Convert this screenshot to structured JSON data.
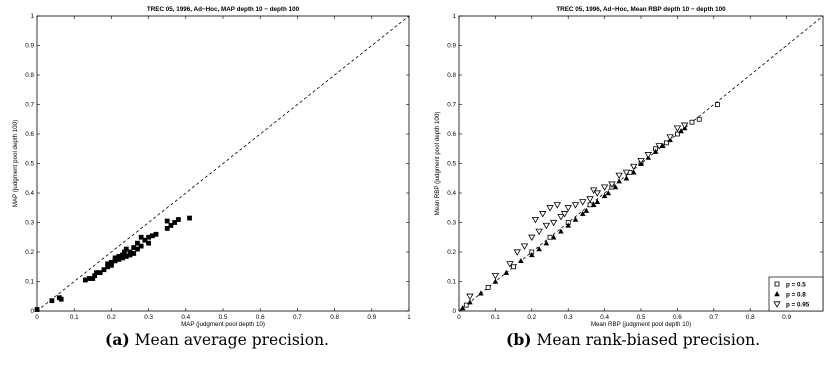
{
  "chart_data": [
    {
      "type": "scatter",
      "title": "TREC 05, 1996, Ad−Hoc, MAP depth 10 − depth 100",
      "xlabel": "MAP (judgment pool depth 10)",
      "ylabel": "MAP (judgment pool depth 100)",
      "xlim": [
        0,
        1
      ],
      "ylim": [
        0,
        1
      ],
      "xticks": [
        "0",
        "0.1",
        "0.2",
        "0.3",
        "0.4",
        "0.5",
        "0.6",
        "0.7",
        "0.8",
        "0.9",
        "1"
      ],
      "yticks": [
        "0",
        "0.1",
        "0.2",
        "0.3",
        "0.4",
        "0.5",
        "0.6",
        "0.7",
        "0.8",
        "0.9",
        "1"
      ],
      "reference_line": "y = x (dashed)",
      "grid": false,
      "series": [
        {
          "marker": "filled-square",
          "points": [
            [
              0.0,
              0.005
            ],
            [
              0.04,
              0.035
            ],
            [
              0.06,
              0.045
            ],
            [
              0.065,
              0.04
            ],
            [
              0.13,
              0.105
            ],
            [
              0.14,
              0.11
            ],
            [
              0.15,
              0.11
            ],
            [
              0.155,
              0.12
            ],
            [
              0.16,
              0.13
            ],
            [
              0.17,
              0.13
            ],
            [
              0.18,
              0.14
            ],
            [
              0.19,
              0.15
            ],
            [
              0.19,
              0.16
            ],
            [
              0.2,
              0.155
            ],
            [
              0.2,
              0.165
            ],
            [
              0.21,
              0.17
            ],
            [
              0.21,
              0.18
            ],
            [
              0.22,
              0.175
            ],
            [
              0.22,
              0.185
            ],
            [
              0.23,
              0.18
            ],
            [
              0.23,
              0.19
            ],
            [
              0.235,
              0.2
            ],
            [
              0.24,
              0.185
            ],
            [
              0.24,
              0.21
            ],
            [
              0.25,
              0.19
            ],
            [
              0.25,
              0.2
            ],
            [
              0.26,
              0.195
            ],
            [
              0.26,
              0.215
            ],
            [
              0.27,
              0.21
            ],
            [
              0.27,
              0.23
            ],
            [
              0.28,
              0.22
            ],
            [
              0.28,
              0.25
            ],
            [
              0.29,
              0.24
            ],
            [
              0.3,
              0.23
            ],
            [
              0.3,
              0.25
            ],
            [
              0.31,
              0.255
            ],
            [
              0.32,
              0.26
            ],
            [
              0.35,
              0.28
            ],
            [
              0.35,
              0.305
            ],
            [
              0.36,
              0.29
            ],
            [
              0.37,
              0.3
            ],
            [
              0.38,
              0.31
            ],
            [
              0.41,
              0.315
            ]
          ]
        }
      ]
    },
    {
      "type": "scatter",
      "title": "TREC 05, 1996, Ad−Hoc, Mean RBP depth 10 − depth 100",
      "xlabel": "Mean RBP (judgment pool depth 10)",
      "ylabel": "Mean RBP (judgment pool depth 100)",
      "xlim": [
        0,
        1
      ],
      "ylim": [
        0,
        1
      ],
      "xticks": [
        "0",
        "0.1",
        "0.2",
        "0.3",
        "0.4",
        "0.5",
        "0.6",
        "0.7",
        "0.8",
        "0.9"
      ],
      "yticks": [
        "0",
        "0.1",
        "0.2",
        "0.3",
        "0.4",
        "0.5",
        "0.6",
        "0.7",
        "0.8",
        "0.9",
        "1"
      ],
      "reference_line": "y = x (dashed)",
      "grid": false,
      "legend_position": "bottom-right",
      "series": [
        {
          "name": "p = 0.5",
          "marker": "open-square",
          "points": [
            [
              0.02,
              0.02
            ],
            [
              0.08,
              0.08
            ],
            [
              0.15,
              0.15
            ],
            [
              0.2,
              0.2
            ],
            [
              0.25,
              0.25
            ],
            [
              0.3,
              0.3
            ],
            [
              0.36,
              0.36
            ],
            [
              0.42,
              0.42
            ],
            [
              0.47,
              0.47
            ],
            [
              0.5,
              0.5
            ],
            [
              0.54,
              0.55
            ],
            [
              0.57,
              0.57
            ],
            [
              0.6,
              0.6
            ],
            [
              0.64,
              0.64
            ],
            [
              0.66,
              0.65
            ],
            [
              0.71,
              0.7
            ]
          ]
        },
        {
          "name": "p = 0.8",
          "marker": "filled-triangle-up",
          "points": [
            [
              0.01,
              0.01
            ],
            [
              0.03,
              0.03
            ],
            [
              0.06,
              0.06
            ],
            [
              0.1,
              0.1
            ],
            [
              0.13,
              0.13
            ],
            [
              0.17,
              0.17
            ],
            [
              0.2,
              0.19
            ],
            [
              0.22,
              0.21
            ],
            [
              0.24,
              0.23
            ],
            [
              0.26,
              0.25
            ],
            [
              0.28,
              0.27
            ],
            [
              0.3,
              0.29
            ],
            [
              0.32,
              0.31
            ],
            [
              0.34,
              0.33
            ],
            [
              0.35,
              0.34
            ],
            [
              0.37,
              0.36
            ],
            [
              0.38,
              0.37
            ],
            [
              0.4,
              0.39
            ],
            [
              0.41,
              0.4
            ],
            [
              0.43,
              0.42
            ],
            [
              0.44,
              0.44
            ],
            [
              0.46,
              0.45
            ],
            [
              0.48,
              0.47
            ],
            [
              0.5,
              0.5
            ],
            [
              0.52,
              0.52
            ],
            [
              0.54,
              0.54
            ],
            [
              0.56,
              0.56
            ],
            [
              0.58,
              0.58
            ],
            [
              0.61,
              0.61
            ],
            [
              0.62,
              0.62
            ]
          ]
        },
        {
          "name": "p = 0.95",
          "marker": "open-triangle-down",
          "points": [
            [
              0.03,
              0.05
            ],
            [
              0.1,
              0.12
            ],
            [
              0.14,
              0.16
            ],
            [
              0.16,
              0.2
            ],
            [
              0.18,
              0.22
            ],
            [
              0.2,
              0.25
            ],
            [
              0.21,
              0.31
            ],
            [
              0.22,
              0.27
            ],
            [
              0.23,
              0.33
            ],
            [
              0.24,
              0.29
            ],
            [
              0.25,
              0.35
            ],
            [
              0.26,
              0.3
            ],
            [
              0.27,
              0.36
            ],
            [
              0.28,
              0.32
            ],
            [
              0.29,
              0.33
            ],
            [
              0.3,
              0.35
            ],
            [
              0.32,
              0.36
            ],
            [
              0.34,
              0.37
            ],
            [
              0.36,
              0.38
            ],
            [
              0.37,
              0.41
            ],
            [
              0.38,
              0.4
            ],
            [
              0.4,
              0.42
            ],
            [
              0.42,
              0.43
            ],
            [
              0.44,
              0.46
            ],
            [
              0.46,
              0.47
            ],
            [
              0.48,
              0.49
            ],
            [
              0.5,
              0.51
            ],
            [
              0.52,
              0.53
            ],
            [
              0.55,
              0.56
            ],
            [
              0.58,
              0.59
            ],
            [
              0.6,
              0.62
            ],
            [
              0.62,
              0.63
            ]
          ]
        }
      ]
    }
  ],
  "captions": [
    {
      "tag": "(a)",
      "text": "Mean average precision."
    },
    {
      "tag": "(b)",
      "text": "Mean rank-biased precision."
    }
  ]
}
